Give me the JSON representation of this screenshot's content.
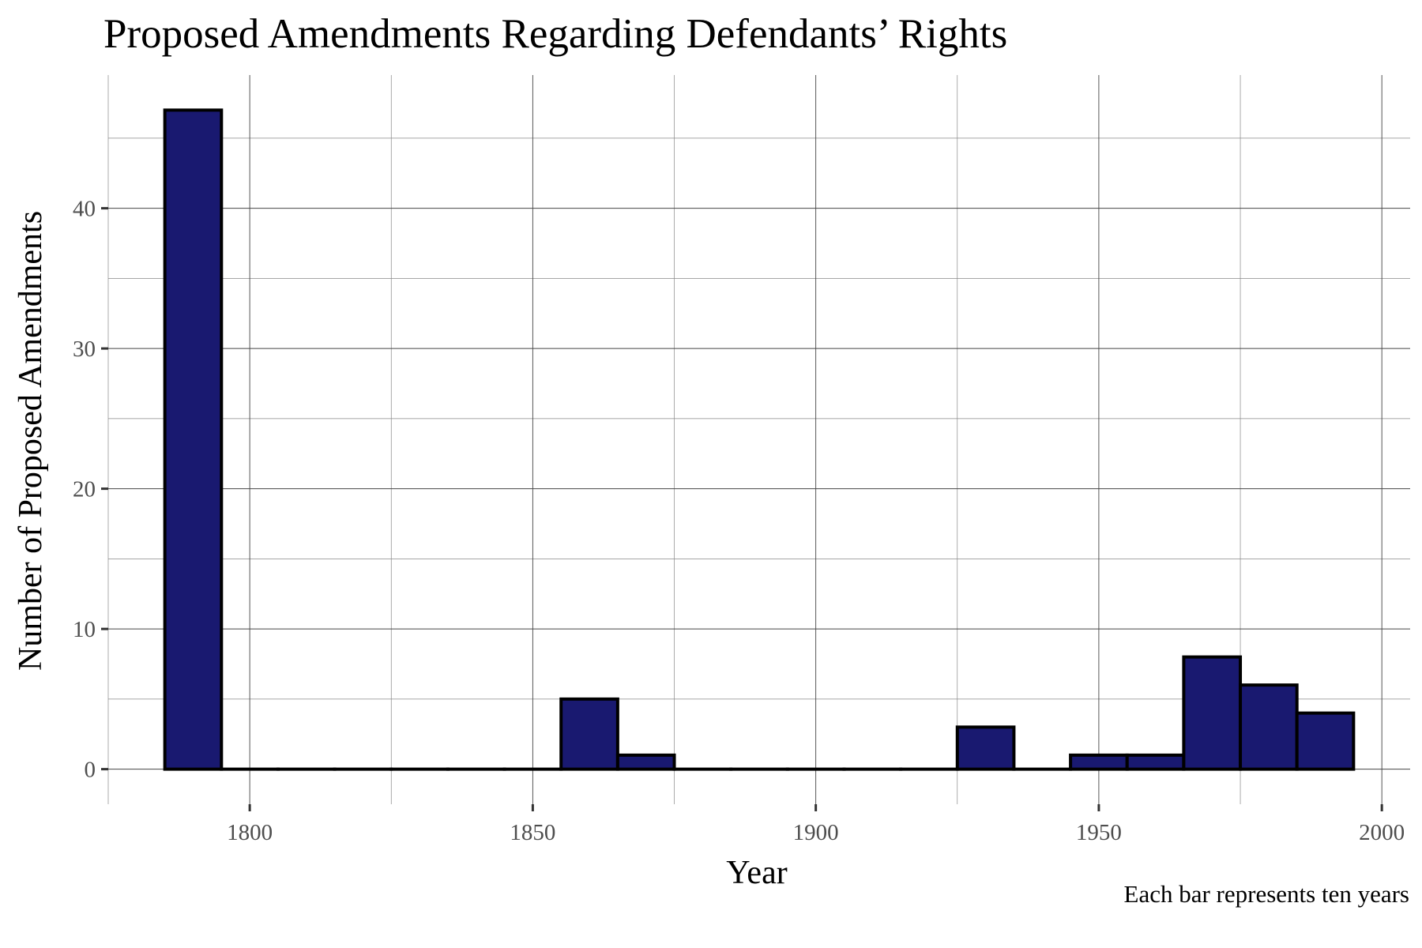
{
  "chart_data": {
    "type": "bar",
    "title": "Proposed Amendments Regarding Defendants’ Rights",
    "xlabel": "Year",
    "ylabel": "Number of Proposed Amendments",
    "caption": "Each bar represents ten years",
    "bin_width": 10,
    "xlim": [
      1775,
      2005
    ],
    "ylim": [
      -2.5,
      49.5
    ],
    "x_ticks": [
      1800,
      1850,
      1900,
      1950,
      2000
    ],
    "y_ticks": [
      0,
      10,
      20,
      30,
      40
    ],
    "x_tick_labels": [
      "1800",
      "1850",
      "1900",
      "1950",
      "2000"
    ],
    "y_tick_labels": [
      "0",
      "10",
      "20",
      "30",
      "40"
    ],
    "grid": true,
    "bar_color": "#191970",
    "bar_edge_color": "#000000",
    "bins": [
      {
        "start": 1785,
        "end": 1795,
        "count": 47
      },
      {
        "start": 1795,
        "end": 1805,
        "count": 0
      },
      {
        "start": 1805,
        "end": 1815,
        "count": 0
      },
      {
        "start": 1815,
        "end": 1825,
        "count": 0
      },
      {
        "start": 1825,
        "end": 1835,
        "count": 0
      },
      {
        "start": 1835,
        "end": 1845,
        "count": 0
      },
      {
        "start": 1845,
        "end": 1855,
        "count": 0
      },
      {
        "start": 1855,
        "end": 1865,
        "count": 5
      },
      {
        "start": 1865,
        "end": 1875,
        "count": 1
      },
      {
        "start": 1875,
        "end": 1885,
        "count": 0
      },
      {
        "start": 1885,
        "end": 1895,
        "count": 0
      },
      {
        "start": 1895,
        "end": 1905,
        "count": 0
      },
      {
        "start": 1905,
        "end": 1915,
        "count": 0
      },
      {
        "start": 1915,
        "end": 1925,
        "count": 0
      },
      {
        "start": 1925,
        "end": 1935,
        "count": 3
      },
      {
        "start": 1935,
        "end": 1945,
        "count": 0
      },
      {
        "start": 1945,
        "end": 1955,
        "count": 1
      },
      {
        "start": 1955,
        "end": 1965,
        "count": 1
      },
      {
        "start": 1965,
        "end": 1975,
        "count": 8
      },
      {
        "start": 1975,
        "end": 1985,
        "count": 6
      },
      {
        "start": 1985,
        "end": 1995,
        "count": 4
      }
    ]
  }
}
